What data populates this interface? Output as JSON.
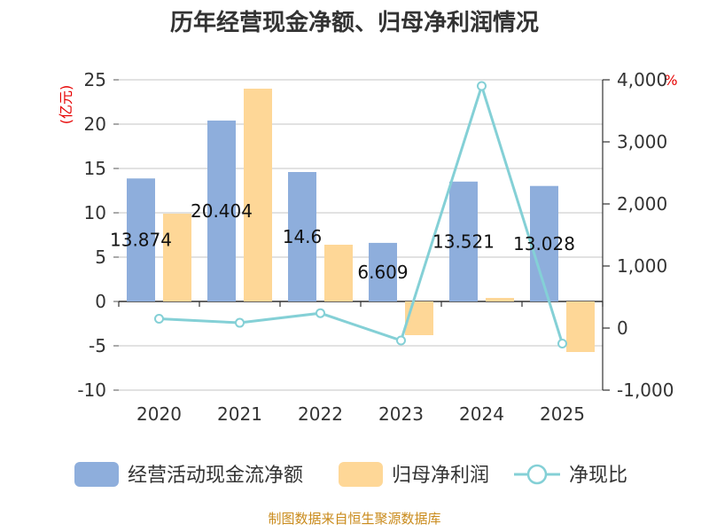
{
  "chart_data": {
    "type": "bar",
    "title": "历年经营现金净额、归母净利润情况",
    "categories": [
      "2020",
      "2021",
      "2022",
      "2023",
      "2024",
      "2025"
    ],
    "series": [
      {
        "name": "经营活动现金流净额",
        "type": "bar",
        "axis": "left",
        "color": "#8eaedc",
        "values": [
          13.874,
          20.404,
          14.6,
          6.609,
          13.521,
          13.028
        ],
        "labels": [
          "13.874",
          "20.404",
          "14.6",
          "6.609",
          "13.521",
          "13.028"
        ]
      },
      {
        "name": "归母净利润",
        "type": "bar",
        "axis": "left",
        "color": "#fed797",
        "values": [
          9.9,
          24.0,
          6.4,
          -3.8,
          0.4,
          -5.7
        ]
      },
      {
        "name": "净现比",
        "type": "line",
        "axis": "right",
        "color": "#84d0d6",
        "values": [
          150,
          85,
          240,
          -200,
          3900,
          -250
        ]
      }
    ],
    "y_left": {
      "unit": "(亿元)",
      "min": -10,
      "max": 25,
      "ticks": [
        "-10",
        "-5",
        "0",
        "5",
        "10",
        "15",
        "20",
        "25"
      ]
    },
    "y_right": {
      "unit": "%",
      "min": -1000,
      "max": 4000,
      "ticks": [
        "-1,000",
        "0",
        "1,000",
        "2,000",
        "3,000",
        "4,000"
      ]
    },
    "legend_position": "bottom"
  },
  "source_note": "制图数据来自恒生聚源数据库"
}
